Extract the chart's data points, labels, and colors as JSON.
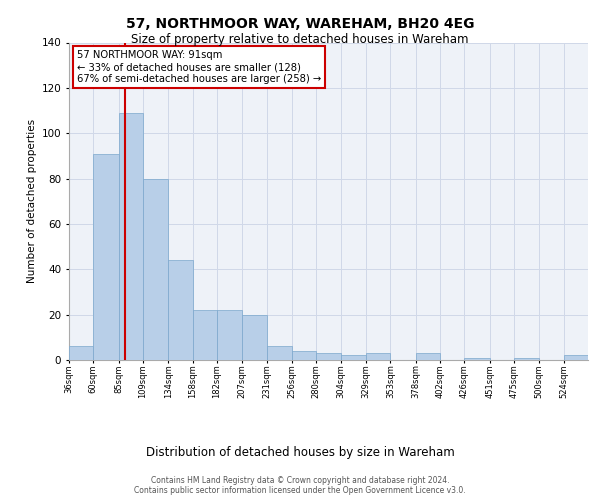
{
  "title1": "57, NORTHMOOR WAY, WAREHAM, BH20 4EG",
  "title2": "Size of property relative to detached houses in Wareham",
  "xlabel": "Distribution of detached houses by size in Wareham",
  "ylabel": "Number of detached properties",
  "bin_labels": [
    "36sqm",
    "60sqm",
    "85sqm",
    "109sqm",
    "134sqm",
    "158sqm",
    "182sqm",
    "207sqm",
    "231sqm",
    "256sqm",
    "280sqm",
    "304sqm",
    "329sqm",
    "353sqm",
    "378sqm",
    "402sqm",
    "426sqm",
    "451sqm",
    "475sqm",
    "500sqm",
    "524sqm"
  ],
  "bin_edges": [
    36,
    60,
    85,
    109,
    134,
    158,
    182,
    207,
    231,
    256,
    280,
    304,
    329,
    353,
    378,
    402,
    426,
    451,
    475,
    500,
    524,
    548
  ],
  "heights": [
    6,
    91,
    109,
    80,
    44,
    22,
    22,
    20,
    6,
    4,
    3,
    2,
    3,
    0,
    3,
    0,
    1,
    0,
    1,
    0,
    2
  ],
  "property_size": 91,
  "bar_color": "#b8cfe8",
  "bar_edge_color": "#7ba7cc",
  "vline_color": "#cc0000",
  "annotation_text": "57 NORTHMOOR WAY: 91sqm\n← 33% of detached houses are smaller (128)\n67% of semi-detached houses are larger (258) →",
  "annotation_box_color": "#ffffff",
  "annotation_box_edge": "#cc0000",
  "grid_color": "#d0d8e8",
  "background_color": "#eef2f8",
  "footer_line1": "Contains HM Land Registry data © Crown copyright and database right 2024.",
  "footer_line2": "Contains public sector information licensed under the Open Government Licence v3.0.",
  "ylim": [
    0,
    140
  ],
  "yticks": [
    0,
    20,
    40,
    60,
    80,
    100,
    120,
    140
  ]
}
